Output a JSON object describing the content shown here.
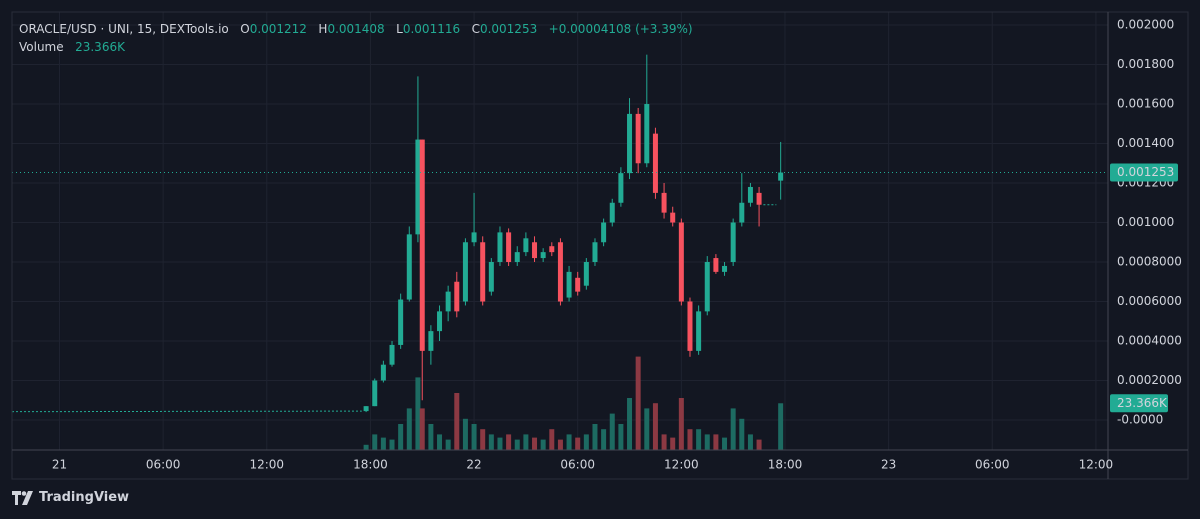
{
  "chart_data": {
    "type": "candlestick",
    "legend_text": {
      "symbol": "ORACLE/USD · UNI, 15, DEXTools.io",
      "o_label": "O",
      "o": "0.001212",
      "h_label": "H",
      "h": "0.001408",
      "l_label": "L",
      "l": "0.001116",
      "c_label": "C",
      "c": "0.001253",
      "change": "+0.00004108 (+3.39%)",
      "volume_label": "Volume",
      "volume": "23.366K"
    },
    "brand": "TradingView",
    "xlim": [
      -2.75,
      60.7
    ],
    "xticks": [
      {
        "value": 0,
        "label": "21"
      },
      {
        "value": 6,
        "label": "06:00"
      },
      {
        "value": 12,
        "label": "12:00"
      },
      {
        "value": 18,
        "label": "18:00"
      },
      {
        "value": 24,
        "label": "22"
      },
      {
        "value": 30,
        "label": "06:00"
      },
      {
        "value": 36,
        "label": "12:00"
      },
      {
        "value": 42,
        "label": "18:00"
      },
      {
        "value": 48,
        "label": "23"
      },
      {
        "value": 54,
        "label": "06:00"
      },
      {
        "value": 60,
        "label": "12:00"
      }
    ],
    "ylim": [
      -0.000152,
      0.002066
    ],
    "yticks": [
      {
        "value": 0,
        "label": "-0.0000"
      },
      {
        "value": 0.0002,
        "label": "0.0002000"
      },
      {
        "value": 0.0004,
        "label": "0.0004000"
      },
      {
        "value": 0.0006,
        "label": "0.0006000"
      },
      {
        "value": 0.0008,
        "label": "0.0008000"
      },
      {
        "value": 0.001,
        "label": "0.001000"
      },
      {
        "value": 0.0012,
        "label": "0.001200"
      },
      {
        "value": 0.0014,
        "label": "0.001400"
      },
      {
        "value": 0.0016,
        "label": "0.001600"
      },
      {
        "value": 0.0018,
        "label": "0.001800"
      },
      {
        "value": 0.002,
        "label": "0.002000"
      }
    ],
    "volume_ylim": [
      0,
      219000
    ],
    "last_price": 0.001253,
    "grid": true,
    "up_color": "#22ab94",
    "down_color": "#f7525f",
    "volume_up_color": "#1d6b62",
    "volume_down_color": "#8c3943",
    "flat_lines": [
      {
        "x": [
          -2.75,
          17.5
        ],
        "values": [
          4.2e-05,
          4.5e-05
        ]
      },
      {
        "x": [
          40.75,
          41.5
        ],
        "values": [
          0.00109,
          0.00109
        ]
      }
    ],
    "x": [
      17.75,
      18.25,
      18.75,
      19.25,
      19.75,
      20.25,
      20.75,
      21,
      21.5,
      22,
      22.5,
      23,
      23.5,
      24,
      24.5,
      25,
      25.5,
      26,
      26.5,
      27,
      27.5,
      28,
      28.5,
      29,
      29.5,
      30,
      30.5,
      31,
      31.5,
      32,
      32.5,
      33,
      33.5,
      34,
      34.5,
      35,
      35.5,
      36,
      36.5,
      37,
      37.5,
      38,
      38.5,
      39,
      39.5,
      40,
      40.5,
      41.75
    ],
    "open": [
      4.5e-05,
      7e-05,
      0.0002,
      0.00028,
      0.00038,
      0.00061,
      0.00094,
      0.00142,
      0.00035,
      0.00045,
      0.00055,
      0.0007,
      0.0006,
      0.0009,
      0.0009,
      0.00065,
      0.0008,
      0.00095,
      0.0008,
      0.00085,
      0.0009,
      0.00082,
      0.00088,
      0.0009,
      0.00062,
      0.00072,
      0.00068,
      0.0008,
      0.0009,
      0.001,
      0.0011,
      0.00125,
      0.00155,
      0.0013,
      0.00145,
      0.00115,
      0.00105,
      0.001,
      0.0006,
      0.00035,
      0.00055,
      0.00082,
      0.00075,
      0.0008,
      0.001,
      0.0011,
      0.00115,
      0.001212
    ],
    "high": [
      7e-05,
      0.00021,
      0.0003,
      0.0004,
      0.00064,
      0.00098,
      0.00174,
      0.00142,
      0.00048,
      0.00058,
      0.00068,
      0.00075,
      0.00092,
      0.00115,
      0.00093,
      0.00082,
      0.00098,
      0.00097,
      0.00088,
      0.00095,
      0.00093,
      0.00087,
      0.0009,
      0.00092,
      0.00078,
      0.00075,
      0.00082,
      0.00092,
      0.00102,
      0.00112,
      0.00128,
      0.00163,
      0.00158,
      0.00185,
      0.00148,
      0.0012,
      0.00108,
      0.00102,
      0.00062,
      0.00058,
      0.00083,
      0.00084,
      0.0008,
      0.00102,
      0.00125,
      0.0012,
      0.00118,
      0.001408
    ],
    "low": [
      4e-05,
      7e-05,
      0.00019,
      0.00027,
      0.00036,
      0.0006,
      0.0009,
      0.0001,
      0.00028,
      0.0004,
      0.0005,
      0.00052,
      0.00058,
      0.00088,
      0.00058,
      0.00063,
      0.00078,
      0.00078,
      0.00078,
      0.00083,
      0.0008,
      0.0008,
      0.00083,
      0.00058,
      0.0006,
      0.00063,
      0.00066,
      0.00078,
      0.00088,
      0.00098,
      0.00108,
      0.00122,
      0.00125,
      0.00128,
      0.00112,
      0.00102,
      0.00098,
      0.00058,
      0.00032,
      0.00033,
      0.00053,
      0.00074,
      0.00073,
      0.00078,
      0.00098,
      0.00108,
      0.00098,
      0.001116
    ],
    "close": [
      7e-05,
      0.0002,
      0.00028,
      0.00038,
      0.00061,
      0.00094,
      0.00142,
      0.00035,
      0.00045,
      0.00055,
      0.00065,
      0.00055,
      0.0009,
      0.00095,
      0.0006,
      0.0008,
      0.00095,
      0.0008,
      0.00085,
      0.00092,
      0.00082,
      0.00085,
      0.00085,
      0.0006,
      0.00075,
      0.00065,
      0.0008,
      0.0009,
      0.001,
      0.0011,
      0.00125,
      0.00155,
      0.0013,
      0.0016,
      0.00115,
      0.00105,
      0.001,
      0.0006,
      0.00035,
      0.00055,
      0.0008,
      0.00075,
      0.00078,
      0.001,
      0.0011,
      0.00118,
      0.00109,
      0.001253
    ],
    "volume": [
      2600,
      7800,
      6200,
      5200,
      13000,
      20800,
      36300,
      20800,
      13000,
      7800,
      5200,
      28500,
      15600,
      13000,
      10400,
      7800,
      6200,
      7800,
      5200,
      7800,
      6200,
      5200,
      10400,
      5200,
      7800,
      6200,
      7800,
      13000,
      10400,
      18200,
      13000,
      26000,
      46700,
      20800,
      23400,
      7800,
      6200,
      26000,
      10400,
      10400,
      7800,
      7800,
      6200,
      20800,
      15600,
      7800,
      5200,
      23366
    ]
  }
}
